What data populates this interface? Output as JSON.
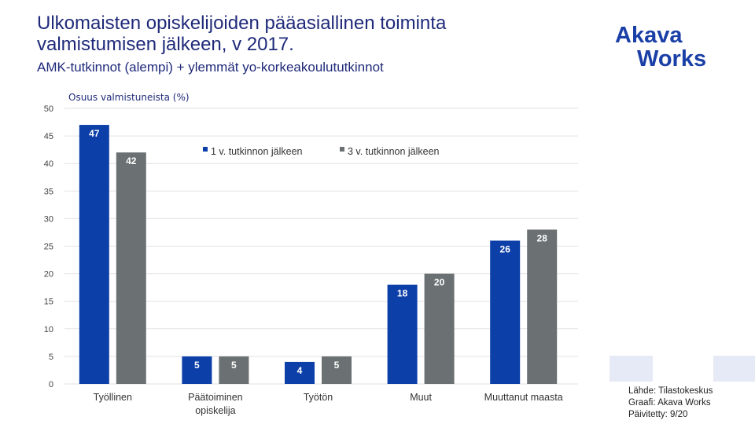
{
  "header": {
    "title_line1": "Ulkomaisten opiskelijoiden pääasiallinen toiminta",
    "title_line2": "valmistumisen jälkeen, v 2017.",
    "subtitle": "AMK-tutkinnot (alempi) + ylemmät yo-korkeakoulututkinnot"
  },
  "logo": {
    "line1": "Akava",
    "line2": "Works",
    "color": "#1a3fa6"
  },
  "chart_data": {
    "type": "bar",
    "ylabel": "Osuus valmistuneista (%)",
    "ylim": [
      0,
      50
    ],
    "yticks": [
      0,
      5,
      10,
      15,
      20,
      25,
      30,
      35,
      40,
      45,
      50
    ],
    "categories": [
      "Työllinen",
      "Päätoiminen opiskelija",
      "Työtön",
      "Muut",
      "Muuttanut maasta"
    ],
    "category_lines": [
      [
        "Työllinen"
      ],
      [
        "Päätoiminen",
        "opiskelija"
      ],
      [
        "Työtön"
      ],
      [
        "Muut"
      ],
      [
        "Muuttanut maasta"
      ]
    ],
    "series": [
      {
        "name": "1 v. tutkinnon jälkeen",
        "values": [
          47,
          5,
          4,
          18,
          26
        ],
        "color": "#0d3fa8"
      },
      {
        "name": "3 v. tutkinnon jälkeen",
        "values": [
          42,
          5,
          5,
          20,
          28
        ],
        "color": "#6b7172"
      }
    ],
    "legend_position": "top-center",
    "grid": true
  },
  "footer": {
    "source": "Lähde: Tilastokeskus",
    "graph": "Graafi: Akava Works",
    "updated": "Päivitetty: 9/20"
  }
}
